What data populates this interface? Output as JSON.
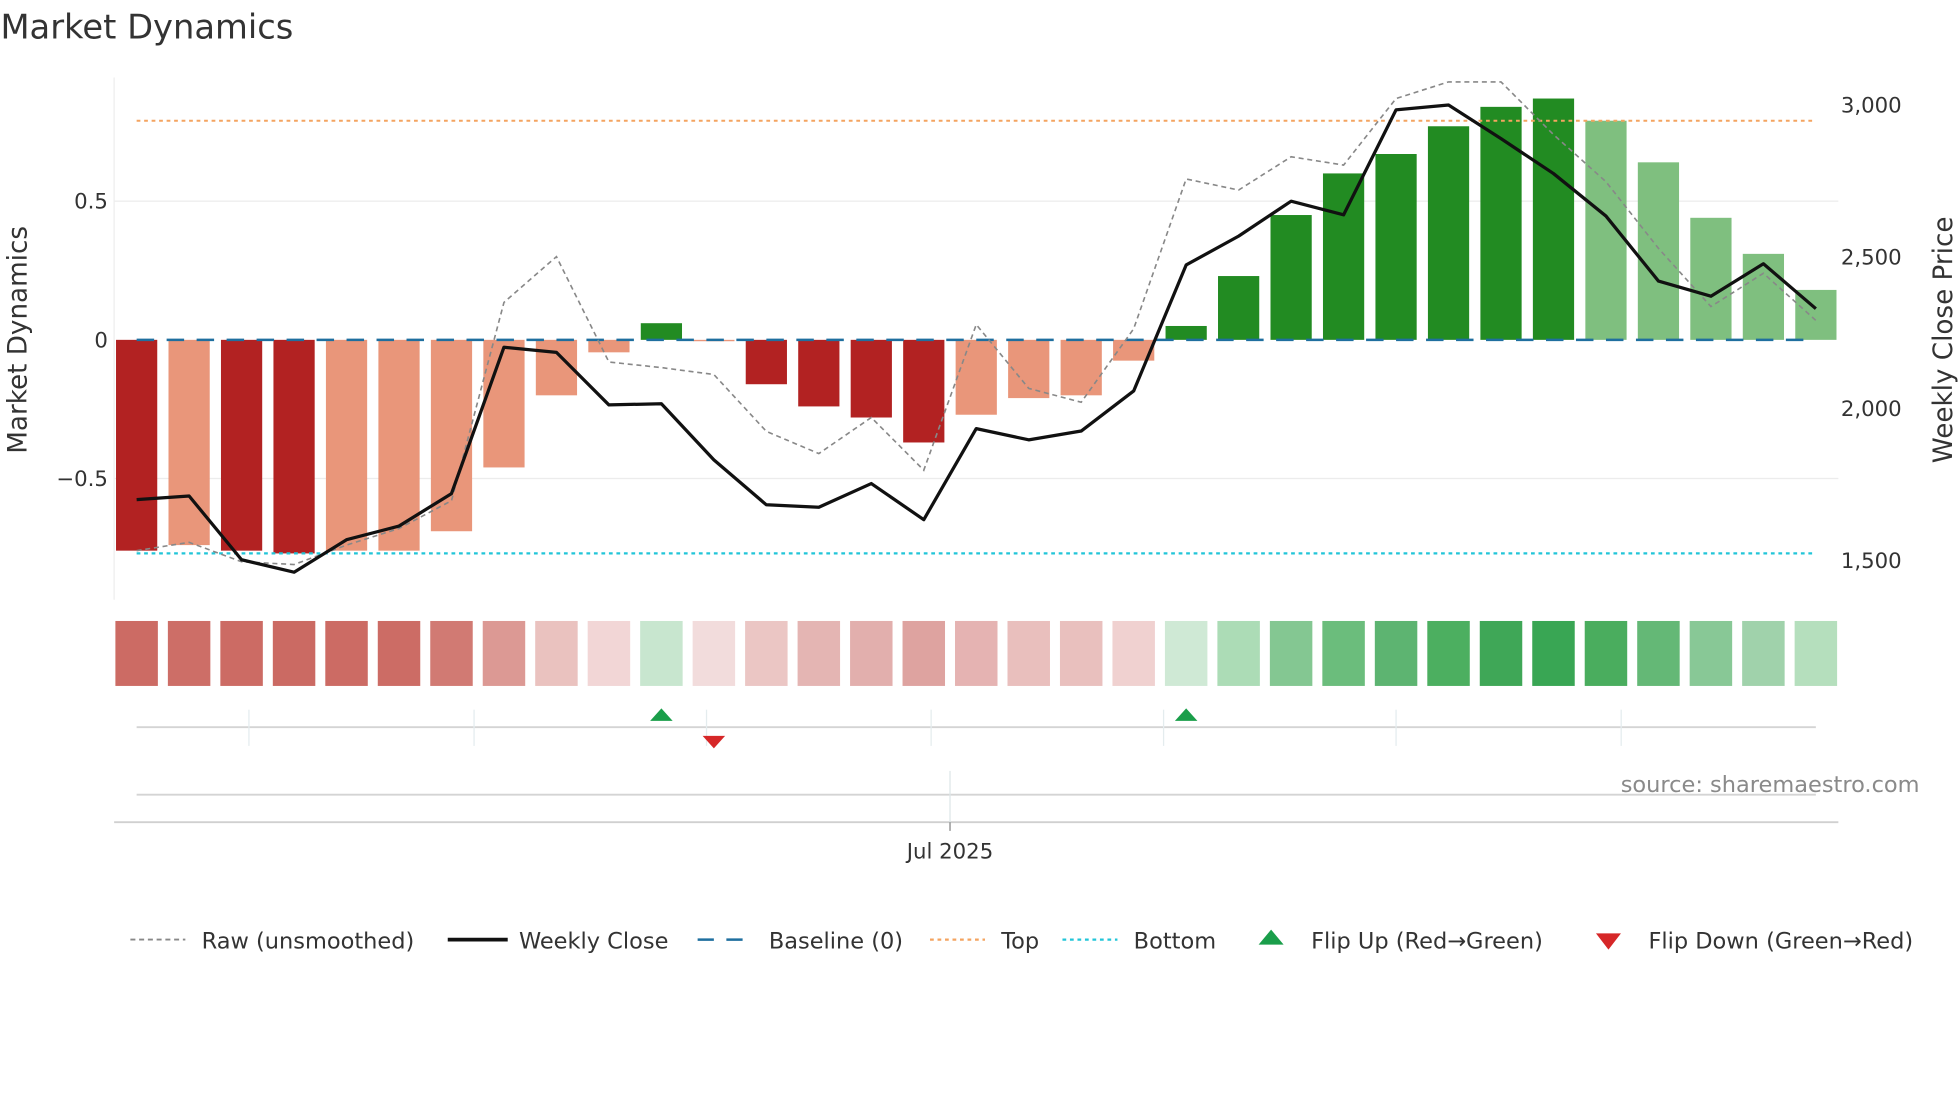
{
  "chart_data": {
    "type": "bar",
    "title": "Market Dynamics",
    "ylabel": "Market Dynamics",
    "y2label": "Weekly Close Price",
    "ylim": [
      -0.95,
      0.95
    ],
    "y2lim": [
      1380,
      3120
    ],
    "yticks": [
      {
        "v": 0.5,
        "label": "0.5"
      },
      {
        "v": 0,
        "label": "0"
      },
      {
        "v": -0.5,
        "label": "−0.5"
      }
    ],
    "y2ticks": [
      {
        "v": 3000,
        "label": "3,000"
      },
      {
        "v": 2500,
        "label": "2,500"
      },
      {
        "v": 2000,
        "label": "2,000"
      },
      {
        "v": 1500,
        "label": "1,500"
      }
    ],
    "xtick_label": "Jul 2025",
    "xtick_index": 15.5,
    "minor_tick_indices": [
      2.14,
      6.43,
      10.86,
      15.14,
      19.57,
      24.0,
      28.29
    ],
    "grid": true,
    "top_level": 0.79,
    "bottom_level": -0.77,
    "baseline": 0,
    "smoothed": [
      -0.76,
      -0.74,
      -0.76,
      -0.77,
      -0.76,
      -0.76,
      -0.69,
      -0.46,
      -0.2,
      -0.045,
      0.06,
      -0.005,
      -0.16,
      -0.24,
      -0.28,
      -0.37,
      -0.27,
      -0.21,
      -0.2,
      -0.075,
      0.05,
      0.23,
      0.45,
      0.6,
      0.67,
      0.77,
      0.84,
      0.87,
      0.79,
      0.64,
      0.44,
      0.31,
      0.18
    ],
    "strength": [
      "strong",
      "weak",
      "strong",
      "strong",
      "weak",
      "weak",
      "weak",
      "weak",
      "weak",
      "weak",
      "strong",
      "weak",
      "strong",
      "strong",
      "strong",
      "strong",
      "weak",
      "weak",
      "weak",
      "weak",
      "strong",
      "strong",
      "strong",
      "strong",
      "strong",
      "strong",
      "strong",
      "strong",
      "weak",
      "weak",
      "weak",
      "weak",
      "weak"
    ],
    "raw": [
      -0.76,
      -0.73,
      -0.8,
      -0.81,
      -0.74,
      -0.68,
      -0.58,
      0.135,
      0.3,
      -0.08,
      -0.1,
      -0.125,
      -0.33,
      -0.41,
      -0.28,
      -0.47,
      0.055,
      -0.175,
      -0.225,
      0.04,
      0.58,
      0.54,
      0.66,
      0.63,
      0.87,
      0.93,
      0.93,
      0.74,
      0.57,
      0.33,
      0.12,
      0.24,
      0.07
    ],
    "weekly_close": [
      1700,
      1712,
      1502,
      1461,
      1568,
      1613,
      1720,
      2202,
      2185,
      2012,
      2016,
      1831,
      1683,
      1675,
      1753,
      1634,
      1934,
      1897,
      1926,
      2058,
      2473,
      2568,
      2683,
      2638,
      2984,
      3000,
      2889,
      2774,
      2634,
      2420,
      2370,
      2477,
      2329
    ],
    "heat_colors": [
      "#cc6b64",
      "#cd6e67",
      "#cc6b64",
      "#cb6a63",
      "#cc6b64",
      "#cc6c65",
      "#d17a73",
      "#dc9994",
      "#eac2bf",
      "#f2d6d6",
      "#c8e6cf",
      "#f2dcdc",
      "#ebc6c4",
      "#e4b5b3",
      "#e2afad",
      "#dea3a0",
      "#e5b3b2",
      "#e9bfbd",
      "#e9c0be",
      "#f0d1d0",
      "#cfe9d5",
      "#acdcb6",
      "#84c792",
      "#6bbd7c",
      "#5db471",
      "#4caf60",
      "#3fa757",
      "#39a654",
      "#4aad5e",
      "#64b876",
      "#88c896",
      "#a0d2ab",
      "#b5dfbd"
    ],
    "flip_up_indices": [
      10,
      20
    ],
    "flip_down_indices": [
      11
    ],
    "colors": {
      "neg_strong": "#b22222",
      "neg_weak": "#e9967a",
      "pos_strong": "#228b22",
      "pos_weak": "#7fbf7f",
      "raw": "#888888",
      "close": "#111111",
      "baseline": "#1f6f9f",
      "top": "#f4a460",
      "bottom": "#22c5d8",
      "flip_up": "#1a9e4a",
      "flip_down": "#d62728"
    },
    "legend": [
      {
        "label": "Raw (unsmoothed)",
        "kind": "raw"
      },
      {
        "label": "Weekly Close",
        "kind": "close"
      },
      {
        "label": "Baseline (0)",
        "kind": "baseline"
      },
      {
        "label": "Top",
        "kind": "top"
      },
      {
        "label": "Bottom",
        "kind": "bottom"
      },
      {
        "label": "Flip Up (Red→Green)",
        "kind": "up"
      },
      {
        "label": "Flip Down (Green→Red)",
        "kind": "down"
      }
    ],
    "legend_position": "bottom",
    "source": "source: sharemaestro.com"
  }
}
